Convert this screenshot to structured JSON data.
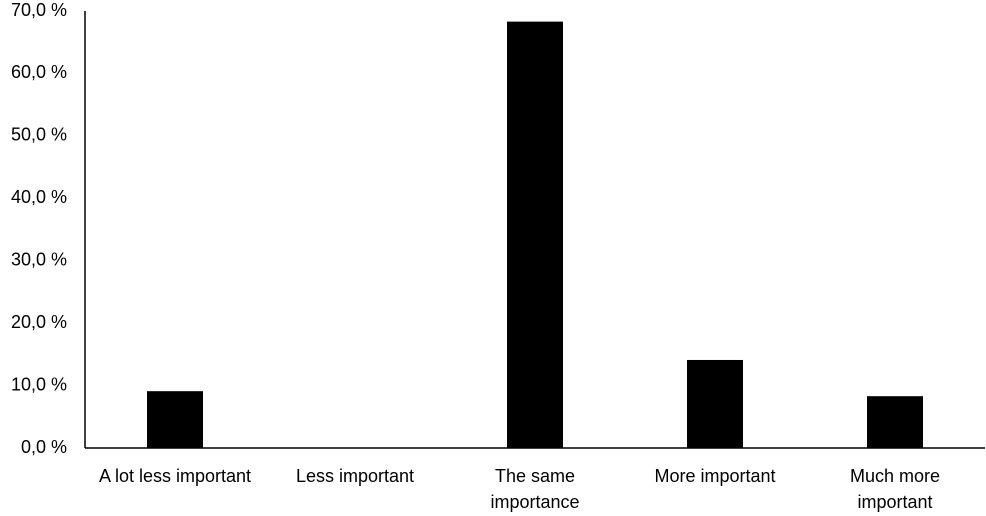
{
  "chart_data": {
    "type": "bar",
    "categories": [
      "A lot less important",
      "Less important",
      "The same\nimportance",
      "More important",
      "Much more\nimportant"
    ],
    "values": [
      9.1,
      0,
      68.3,
      14.1,
      8.3
    ],
    "color": "#000000",
    "ylim": [
      0,
      70
    ],
    "yticks": [
      {
        "value": 0,
        "label": "0,0 %"
      },
      {
        "value": 10,
        "label": "10,0 %"
      },
      {
        "value": 20,
        "label": "20,0 %"
      },
      {
        "value": 30,
        "label": "30,0 %"
      },
      {
        "value": 40,
        "label": "40,0 %"
      },
      {
        "value": 50,
        "label": "50,0 %"
      },
      {
        "value": 60,
        "label": "60,0 %"
      },
      {
        "value": 70,
        "label": "70,0 %"
      }
    ],
    "grid": false
  }
}
